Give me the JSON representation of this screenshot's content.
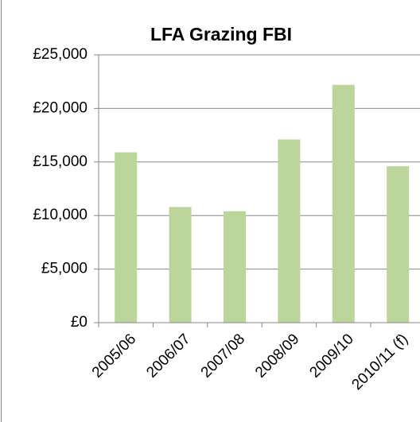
{
  "chart_data": {
    "type": "bar",
    "title": "LFA Grazing FBI",
    "categories": [
      "2005/06",
      "2006/07",
      "2007/08",
      "2008/09",
      "2009/10",
      "2010/11 (f)"
    ],
    "values": [
      15900,
      10800,
      10400,
      17100,
      22200,
      14600
    ],
    "color": "#bbd59a",
    "ylim": [
      0,
      25000
    ],
    "yticks": [
      {
        "value": 0,
        "label": "£0"
      },
      {
        "value": 5000,
        "label": "£5,000"
      },
      {
        "value": 10000,
        "label": "£10,000"
      },
      {
        "value": 15000,
        "label": "£15,000"
      },
      {
        "value": 20000,
        "label": "£20,000"
      },
      {
        "value": 25000,
        "label": "£25,000"
      }
    ],
    "grid": true
  }
}
